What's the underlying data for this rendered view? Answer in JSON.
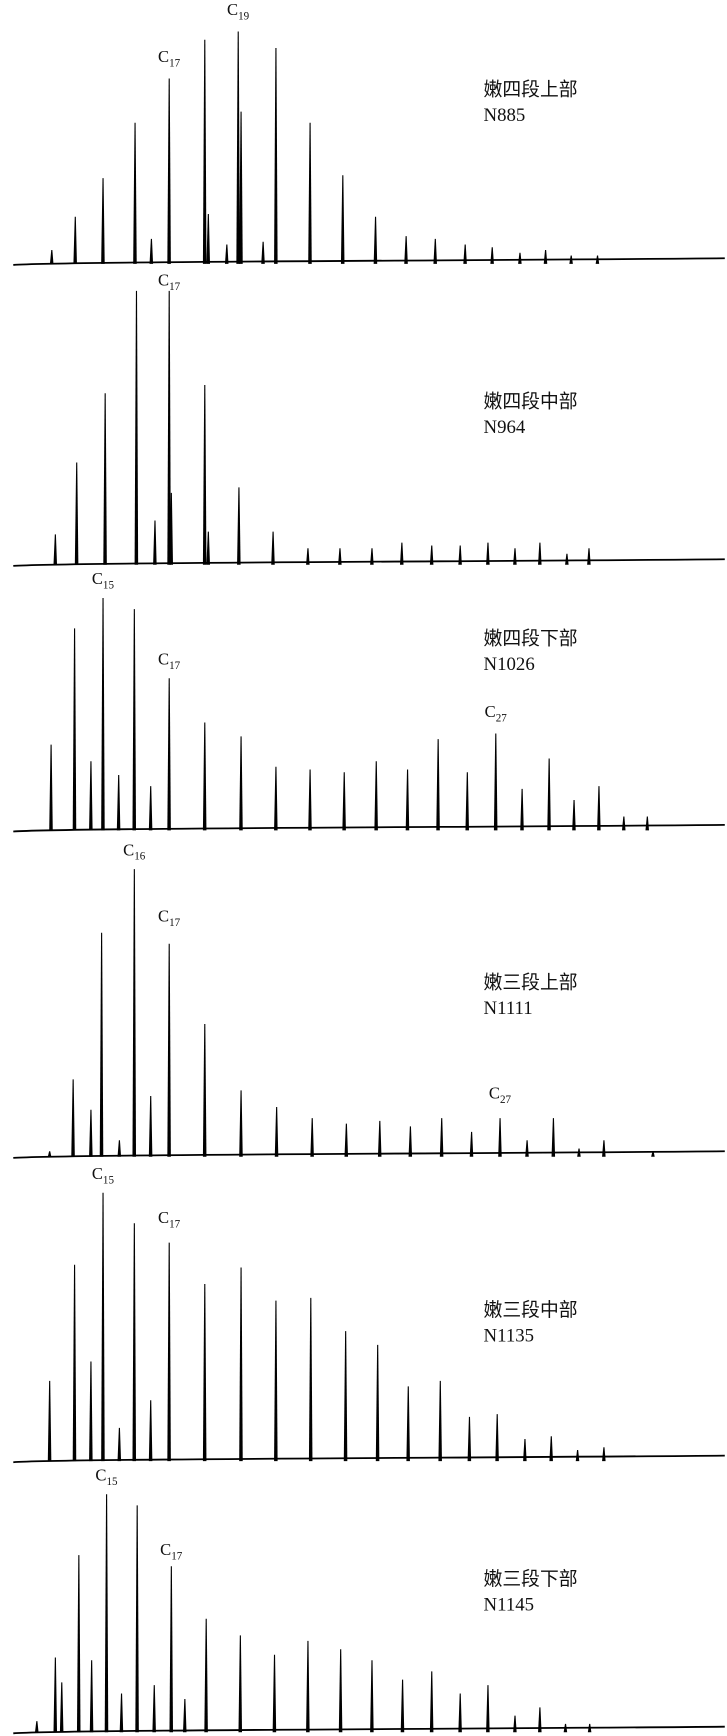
{
  "chart_data": [
    {
      "type": "spikes",
      "sample": "嫩四段上部",
      "well": "N885",
      "xlim": [
        0,
        100
      ],
      "ylim": [
        0,
        110
      ],
      "color": "#000000",
      "x": [
        5.4,
        8.7,
        12.6,
        17.1,
        19.4,
        21.9,
        26.9,
        27.4,
        30.0,
        31.6,
        32.0,
        35.1,
        36.9,
        41.7,
        46.3,
        50.9,
        55.2,
        59.3,
        63.5,
        67.3,
        71.2,
        74.8,
        78.4,
        82.1
      ],
      "values": [
        5,
        17,
        31,
        51,
        9,
        67,
        81,
        18,
        7,
        84,
        55,
        8,
        78,
        51,
        32,
        17,
        10,
        9,
        7,
        6,
        4,
        5,
        3,
        3
      ],
      "annotations": [
        {
          "label": "C",
          "subscript": "17",
          "x": 21.9,
          "y": 73
        },
        {
          "label": "C",
          "subscript": "19",
          "x": 31.6,
          "y": 90
        }
      ]
    },
    {
      "type": "spikes",
      "sample": "嫩四段中部",
      "well": "N964",
      "xlim": [
        0,
        100
      ],
      "ylim": [
        0,
        110
      ],
      "color": "#000000",
      "x": [
        5.9,
        8.9,
        12.9,
        17.3,
        19.9,
        21.9,
        22.2,
        26.9,
        27.4,
        31.7,
        36.5,
        41.4,
        45.9,
        50.4,
        54.6,
        58.8,
        62.8,
        66.7,
        70.5,
        74.0,
        77.8,
        80.9
      ],
      "values": [
        11,
        37,
        62,
        99,
        16,
        99,
        26,
        65,
        12,
        28,
        12,
        6,
        6,
        6,
        8,
        7,
        7,
        8,
        6,
        8,
        4,
        6
      ],
      "annotations": [
        {
          "label": "C",
          "subscript": "17",
          "x": 21.9,
          "y": 101
        }
      ]
    },
    {
      "type": "spikes",
      "sample": "嫩四段下部",
      "well": "N1026",
      "xlim": [
        0,
        100
      ],
      "ylim": [
        0,
        110
      ],
      "color": "#000000",
      "x": [
        5.3,
        8.6,
        10.9,
        12.6,
        14.8,
        17.0,
        19.3,
        21.9,
        26.9,
        32.0,
        36.9,
        41.7,
        46.5,
        51.0,
        55.4,
        59.7,
        63.8,
        67.8,
        71.5,
        75.3,
        78.8,
        82.3,
        85.8,
        89.1
      ],
      "values": [
        31,
        73,
        25,
        84,
        20,
        80,
        16,
        55,
        39,
        34,
        23,
        22,
        21,
        25,
        22,
        33,
        21,
        35,
        15,
        26,
        11,
        16,
        5,
        5
      ],
      "annotations": [
        {
          "label": "C",
          "subscript": "15",
          "x": 12.6,
          "y": 89
        },
        {
          "label": "C",
          "subscript": "17",
          "x": 21.9,
          "y": 60
        },
        {
          "label": "C",
          "subscript": "27",
          "x": 67.8,
          "y": 41
        }
      ]
    },
    {
      "type": "spikes",
      "sample": "嫩三段上部",
      "well": "N1111",
      "xlim": [
        0,
        100
      ],
      "ylim": [
        0,
        110
      ],
      "color": "#000000",
      "x": [
        5.1,
        8.4,
        10.9,
        12.4,
        14.9,
        17.0,
        19.3,
        21.9,
        26.9,
        32.0,
        37.0,
        42.0,
        46.8,
        51.5,
        55.8,
        60.2,
        64.4,
        68.4,
        72.2,
        75.9,
        79.5,
        83.0,
        89.9
      ],
      "values": [
        2,
        28,
        17,
        81,
        6,
        104,
        22,
        77,
        48,
        24,
        18,
        14,
        12,
        13,
        11,
        14,
        9,
        14,
        6,
        14,
        3,
        6,
        2
      ],
      "annotations": [
        {
          "label": "C",
          "subscript": "16",
          "x": 17.0,
          "y": 109
        },
        {
          "label": "C",
          "subscript": "17",
          "x": 21.9,
          "y": 85
        },
        {
          "label": "C",
          "subscript": "27",
          "x": 68.4,
          "y": 21
        }
      ]
    },
    {
      "type": "spikes",
      "sample": "嫩三段中部",
      "well": "N1135",
      "xlim": [
        0,
        100
      ],
      "ylim": [
        0,
        110
      ],
      "color": "#000000",
      "x": [
        5.1,
        8.6,
        10.9,
        12.6,
        14.9,
        17.0,
        19.3,
        21.9,
        26.9,
        32.0,
        36.9,
        41.8,
        46.7,
        51.2,
        55.5,
        60.0,
        64.1,
        68.0,
        71.9,
        75.6,
        79.3,
        83.0
      ],
      "values": [
        29,
        71,
        36,
        97,
        12,
        86,
        22,
        79,
        64,
        70,
        58,
        59,
        47,
        42,
        27,
        29,
        16,
        17,
        8,
        9,
        4,
        5
      ],
      "annotations": [
        {
          "label": "C",
          "subscript": "15",
          "x": 12.6,
          "y": 102
        },
        {
          "label": "C",
          "subscript": "17",
          "x": 21.9,
          "y": 86
        }
      ]
    },
    {
      "type": "spikes",
      "sample": "嫩三段下部",
      "well": "N1145",
      "xlim": [
        0,
        100
      ],
      "ylim": [
        0,
        110
      ],
      "color": "#000000",
      "x": [
        3.3,
        5.9,
        6.8,
        9.2,
        11.0,
        13.1,
        15.2,
        17.4,
        19.8,
        22.2,
        24.1,
        27.1,
        31.9,
        36.7,
        41.4,
        46.0,
        50.4,
        54.7,
        58.8,
        62.8,
        66.7,
        70.5,
        74.0,
        77.6,
        81.0
      ],
      "values": [
        4,
        27,
        18,
        64,
        26,
        86,
        14,
        82,
        17,
        60,
        12,
        41,
        35,
        28,
        33,
        30,
        26,
        19,
        22,
        14,
        17,
        6,
        9,
        3,
        3
      ],
      "annotations": [
        {
          "label": "C",
          "subscript": "15",
          "x": 13.1,
          "y": 91
        },
        {
          "label": "C",
          "subscript": "17",
          "x": 22.2,
          "y": 64
        }
      ]
    }
  ]
}
